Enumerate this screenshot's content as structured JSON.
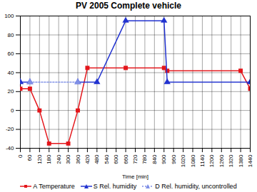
{
  "chart_data": {
    "type": "line",
    "title": "PV 2005 Complete vehicle",
    "xlabel": "Time [min]",
    "xlim": [
      0,
      1440
    ],
    "xticks": [
      0,
      60,
      120,
      180,
      240,
      300,
      360,
      420,
      480,
      540,
      600,
      660,
      720,
      780,
      840,
      900,
      960,
      1020,
      1080,
      1140,
      1200,
      1260,
      1320,
      1380,
      1440
    ],
    "ylim": [
      -40,
      100
    ],
    "yticks": [
      -40,
      -20,
      0,
      20,
      40,
      60,
      80,
      100
    ],
    "grid": true,
    "legend": "bottom",
    "series": [
      {
        "name": "A Temperature",
        "color": "#e4161b",
        "marker": "square",
        "line_style": "solid",
        "x": [
          0,
          60,
          120,
          180,
          300,
          360,
          420,
          660,
          900,
          920,
          1380,
          1440
        ],
        "values": [
          23,
          23,
          0,
          -35,
          -35,
          0,
          45,
          45,
          45,
          42,
          42,
          23
        ]
      },
      {
        "name": "S Rel. humidity",
        "color": "#2233d0",
        "marker": "triangle",
        "line_style": "solid",
        "x": [
          0,
          60,
          200,
          360,
          480,
          660,
          900,
          920,
          1440
        ],
        "values": [
          30,
          30,
          null,
          30,
          30,
          95,
          95,
          30,
          30
        ]
      },
      {
        "name": "D Rel. humidity, uncontrolled",
        "color": "#7f8fe6",
        "marker": "triangle",
        "line_style": "dotted",
        "x": [
          60,
          360
        ],
        "values": [
          30,
          30
        ]
      }
    ]
  }
}
